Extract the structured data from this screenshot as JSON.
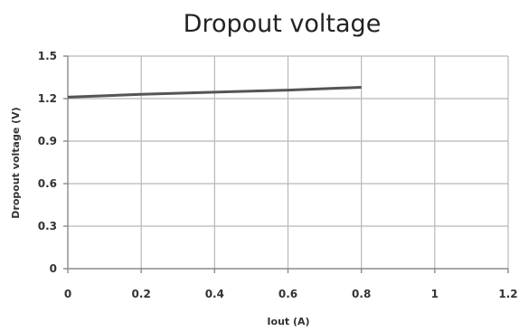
{
  "chart_data": {
    "type": "line",
    "title": "Dropout voltage",
    "xlabel": "Iout (A)",
    "ylabel": "Dropout voltage (V)",
    "xlim": [
      0,
      1.2
    ],
    "ylim": [
      0,
      1.5
    ],
    "x_ticks": [
      0,
      0.2,
      0.4,
      0.6,
      0.8,
      1,
      1.2
    ],
    "x_tick_labels": [
      "0",
      "0.2",
      "0.4",
      "0.6",
      "0.8",
      "1",
      "1.2"
    ],
    "y_ticks": [
      0,
      0.3,
      0.6,
      0.9,
      1.2,
      1.5
    ],
    "y_tick_labels": [
      "0",
      "0.3",
      "0.6",
      "0.9",
      "1.2",
      "1.5"
    ],
    "grid": true,
    "legend": "none",
    "series": [
      {
        "color": "#555555",
        "x": [
          0,
          0.2,
          0.4,
          0.6,
          0.8
        ],
        "y": [
          1.21,
          1.23,
          1.245,
          1.26,
          1.28
        ]
      }
    ]
  }
}
